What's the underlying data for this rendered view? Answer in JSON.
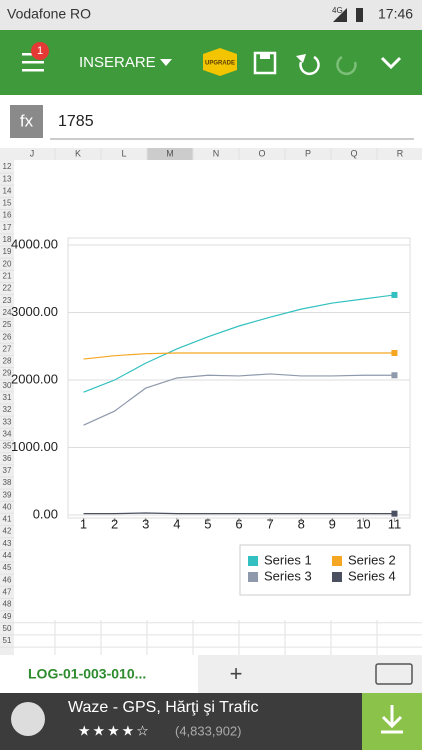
{
  "status_bar": {
    "carrier": "Vodafone RO",
    "network": "4G",
    "time": "17:46"
  },
  "toolbar": {
    "badge": "1",
    "menu": "INSERARE",
    "upgrade": "UPGRADE"
  },
  "formula_bar": {
    "label": "fx",
    "value": "1785"
  },
  "columns": [
    "J",
    "K",
    "L",
    "M",
    "N",
    "O",
    "P",
    "Q",
    "R"
  ],
  "rows": [
    12,
    13,
    14,
    15,
    16,
    17,
    18,
    19,
    20,
    21,
    22,
    23,
    24,
    25,
    26,
    27,
    28,
    29,
    30,
    31,
    32,
    33,
    34,
    35,
    36,
    37,
    38,
    39,
    40,
    41,
    42,
    43,
    44,
    45,
    46,
    47,
    48,
    49,
    50,
    51
  ],
  "chart_data": {
    "type": "line",
    "x": [
      1,
      2,
      3,
      4,
      5,
      6,
      7,
      8,
      9,
      10,
      11
    ],
    "xlim": [
      0.5,
      11.5
    ],
    "ylim": [
      0,
      4000
    ],
    "yticks": [
      {
        "value": 0,
        "label": "0.00"
      },
      {
        "value": 1000,
        "label": "1000.00"
      },
      {
        "value": 2000,
        "label": "2000.00"
      },
      {
        "value": 3000,
        "label": "3000.00"
      },
      {
        "value": 4000,
        "label": "4000.00"
      }
    ],
    "grid": true,
    "legend": "bottom-right",
    "series": [
      {
        "name": "Series 1",
        "color": "#33c0c0",
        "values": [
          1820,
          2000,
          2250,
          2460,
          2640,
          2800,
          2930,
          3050,
          3140,
          3200,
          3260
        ]
      },
      {
        "name": "Series 2",
        "color": "#f5a623",
        "values": [
          2310,
          2360,
          2390,
          2400,
          2400,
          2400,
          2400,
          2400,
          2400,
          2400,
          2400
        ]
      },
      {
        "name": "Series 3",
        "color": "#8e99ab",
        "values": [
          1330,
          1540,
          1880,
          2030,
          2070,
          2060,
          2090,
          2060,
          2060,
          2070,
          2070
        ]
      },
      {
        "name": "Series 4",
        "color": "#4a5060",
        "values": [
          20,
          20,
          30,
          20,
          20,
          20,
          20,
          20,
          20,
          20,
          20
        ]
      }
    ]
  },
  "sheet_tab": {
    "name": "LOG-01-003-010...",
    "add": "+"
  },
  "ad": {
    "title": "Waze - GPS, Hărţi şi Trafic",
    "reviews": "(4,833,902)"
  }
}
